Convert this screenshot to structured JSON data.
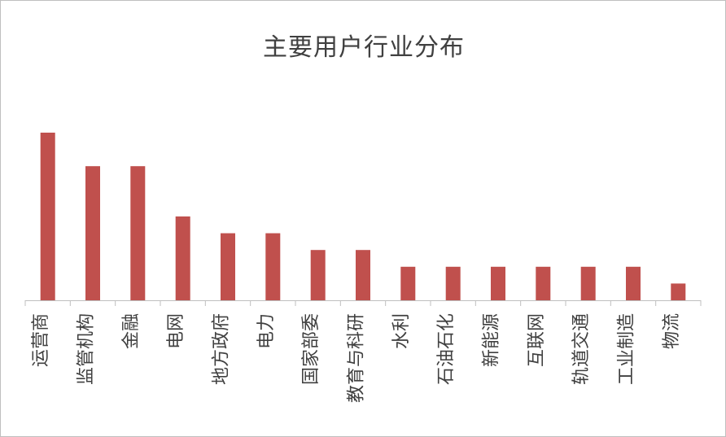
{
  "chart_data": {
    "type": "bar",
    "title": "主要用户行业分布",
    "xlabel": "",
    "ylabel": "",
    "categories": [
      "运营商",
      "监管机构",
      "金融",
      "电网",
      "地方政府",
      "电力",
      "国家部委",
      "教育与科研",
      "水利",
      "石油石化",
      "新能源",
      "互联网",
      "轨道交通",
      "工业制造",
      "物流"
    ],
    "values": [
      10,
      8,
      8,
      5,
      4,
      4,
      3,
      3,
      2,
      2,
      2,
      2,
      2,
      2,
      1
    ],
    "ylim": [
      0,
      10
    ],
    "grid": false,
    "legend": "none",
    "bar_color": "#c0504d"
  }
}
